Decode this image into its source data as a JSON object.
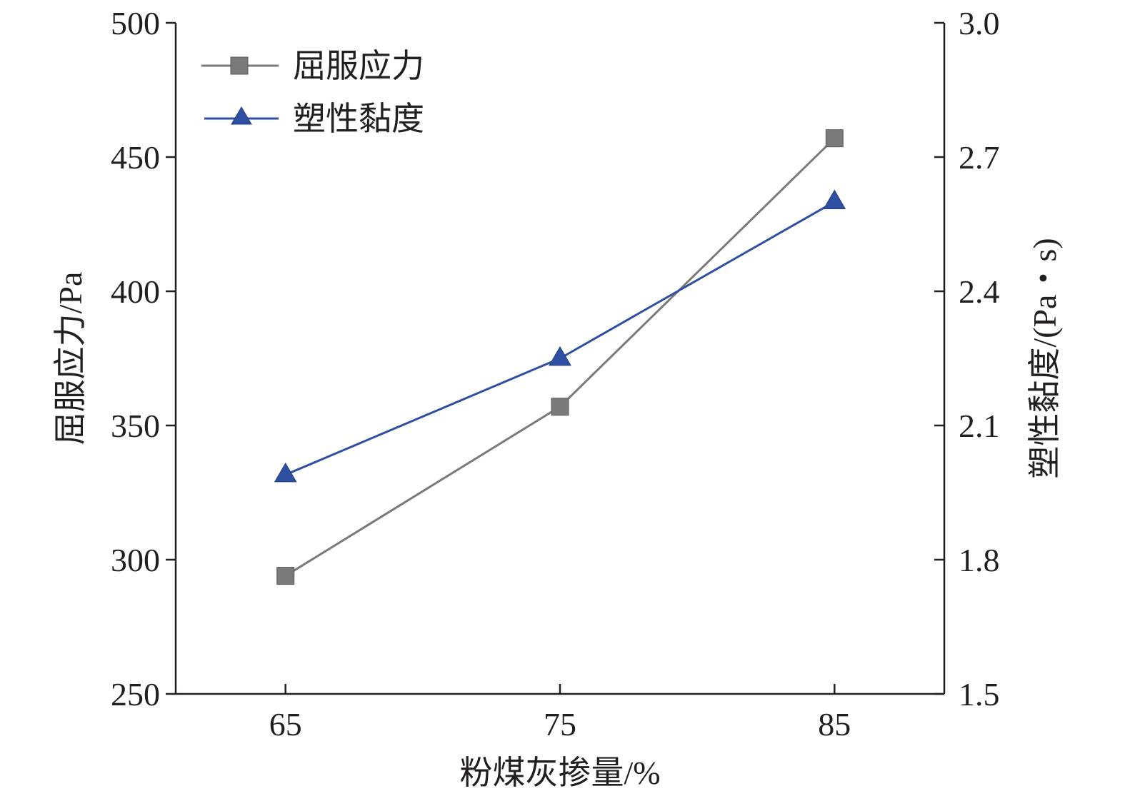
{
  "chart_data": {
    "type": "line",
    "title": "",
    "xlabel": "粉煤灰掺量/%",
    "ylabel_left": "屈服应力/Pa",
    "ylabel_right": "塑性黏度/(Pa・s)",
    "x_ticks": [
      "65",
      "75",
      "85"
    ],
    "x_values": [
      65,
      75,
      85
    ],
    "xlim": [
      61,
      89
    ],
    "ylim_left": [
      250,
      500
    ],
    "ylim_right": [
      1.5,
      3.0
    ],
    "y_left_ticks": [
      "500",
      "450",
      "400",
      "350",
      "300",
      "250"
    ],
    "y_right_ticks": [
      "3.0",
      "2.7",
      "2.4",
      "2.1",
      "1.8",
      "1.5"
    ],
    "grid": false,
    "legend_position": "top-left",
    "series": [
      {
        "name": "屈服应力",
        "axis": "left",
        "marker": "square",
        "color": "#7a7a7a",
        "values": [
          294,
          357,
          457
        ]
      },
      {
        "name": "塑性黏度",
        "axis": "right",
        "marker": "triangle",
        "color": "#2f4fa2",
        "values": [
          1.99,
          2.25,
          2.6
        ]
      }
    ]
  }
}
